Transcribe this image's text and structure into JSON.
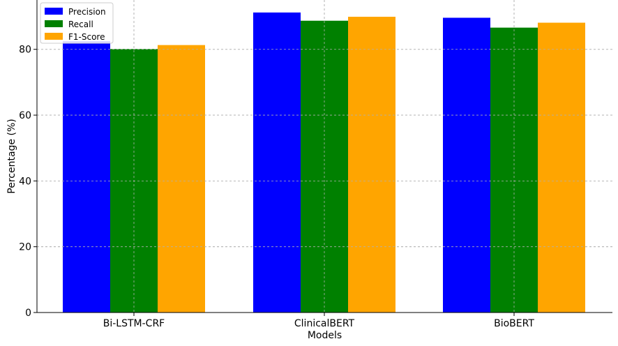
{
  "chart_data": {
    "type": "bar",
    "categories": [
      "Bi-LSTM-CRF",
      "ClinicalBERT",
      "BioBERT"
    ],
    "series": [
      {
        "name": "Precision",
        "values": [
          82.5,
          91.2,
          89.6
        ],
        "color": "#0000ff"
      },
      {
        "name": "Recall",
        "values": [
          80.1,
          88.7,
          86.6
        ],
        "color": "#008000"
      },
      {
        "name": "F1-Score",
        "values": [
          81.3,
          89.9,
          88.1
        ],
        "color": "#ffa500"
      }
    ],
    "title": "",
    "xlabel": "Models",
    "ylabel": "Percentage (%)",
    "ylim": [
      0,
      95
    ],
    "yticks": [
      0,
      20,
      40,
      60,
      80
    ],
    "grid": true,
    "legend_position": "upper-left"
  }
}
